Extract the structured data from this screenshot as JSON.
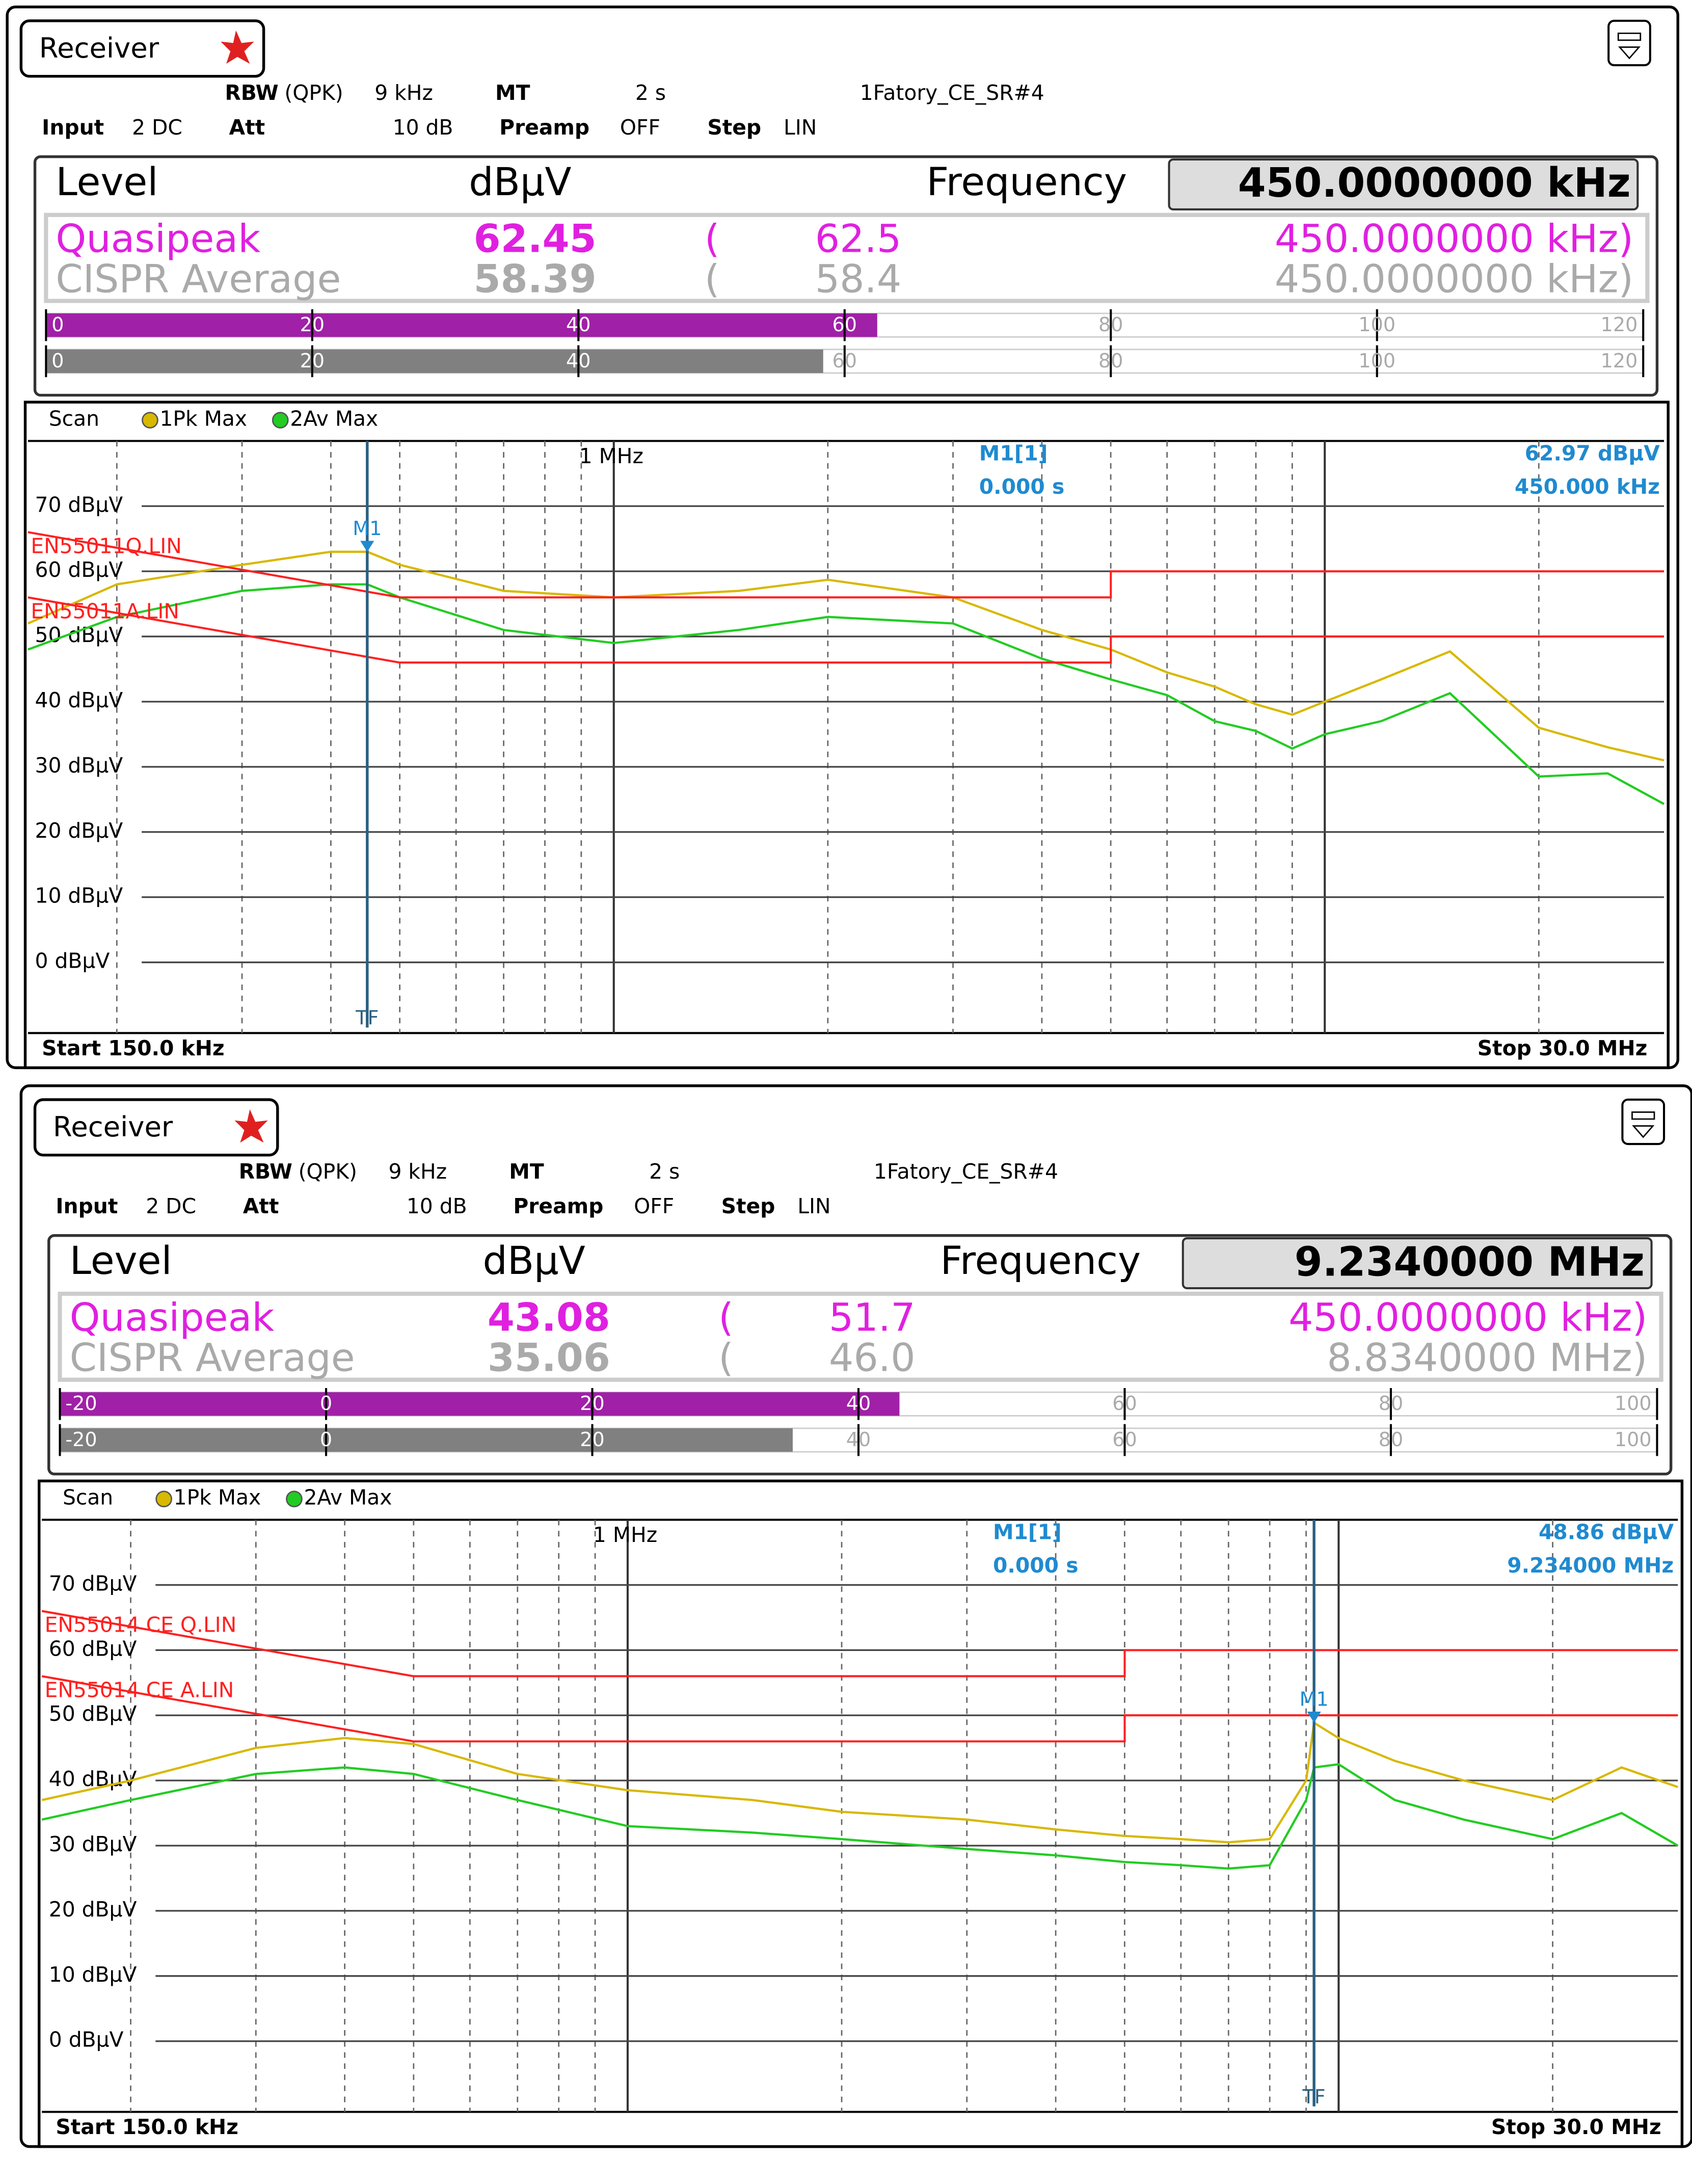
{
  "panels": [
    {
      "tab": "Receiver",
      "settings": {
        "rbw_label": "RBW",
        "rbw_mode": "(QPK)",
        "rbw": "9 kHz",
        "mt_label": "MT",
        "mt": "2 s",
        "name": "1Fatory_CE_SR#4",
        "input_label": "Input",
        "input": "2 DC",
        "att_label": "Att",
        "att": "10 dB",
        "preamp_label": "Preamp",
        "preamp": "OFF",
        "step_label": "Step",
        "step": "LIN"
      },
      "level_label": "Level",
      "unit": "dBµV",
      "frequency_label": "Frequency",
      "frequency": "450.0000000 kHz",
      "detectors": [
        {
          "name": "Quasipeak",
          "value": 62.45,
          "open": "(",
          "max": "62.5",
          "max_freq": "450.0000000 kHz)",
          "color": "#e020e0",
          "bar_color": "#a020a8"
        },
        {
          "name": "CISPR Average",
          "value": 58.39,
          "open": "(",
          "max": "58.4",
          "max_freq": "450.0000000 kHz)",
          "color": "#aaaaaa",
          "bar_color": "#808080"
        }
      ],
      "level_scale": {
        "lim": [
          0,
          120
        ],
        "ticks": [
          0,
          20,
          40,
          60,
          80,
          100,
          120
        ]
      },
      "chart": {
        "type": "line",
        "scan_label": "Scan",
        "log_x": true,
        "start_label": "Start 150.0 kHz",
        "stop_label": "Stop 30.0 MHz",
        "xlim": [
          0.15,
          30
        ],
        "ylim": [
          -10,
          80
        ],
        "xticks": [
          {
            "value": 1,
            "label": "1 MHz"
          }
        ],
        "xgrid": [
          0.2,
          0.3,
          0.4,
          0.5,
          0.6,
          0.7,
          0.8,
          0.9,
          1,
          2,
          3,
          4,
          5,
          6,
          7,
          8,
          9,
          10,
          20
        ],
        "yticks": [
          {
            "value": 0,
            "label": "0 dBµV"
          },
          {
            "value": 10,
            "label": "10 dBµV"
          },
          {
            "value": 20,
            "label": "20 dBµV"
          },
          {
            "value": 30,
            "label": "30 dBµV"
          },
          {
            "value": 40,
            "label": "40 dBµV"
          },
          {
            "value": 50,
            "label": "50 dBµV"
          },
          {
            "value": 60,
            "label": "60 dBµV"
          },
          {
            "value": 70,
            "label": "70 dBµV"
          }
        ],
        "x": [
          0.15,
          0.2,
          0.3,
          0.4,
          0.45,
          0.5,
          0.7,
          1,
          1.5,
          2,
          3,
          4,
          5,
          6,
          7,
          8,
          9,
          10,
          12,
          15,
          20,
          25,
          30
        ],
        "series": [
          {
            "name": "1Pk Max",
            "color": "#d8b800",
            "values": [
              52,
              58,
              61,
              63,
              63,
              61,
              57,
              56,
              57,
              58.7,
              56,
              51,
              48,
              44.5,
              42.3,
              39.6,
              38,
              40,
              43.4,
              47.7,
              36,
              33,
              31
            ]
          },
          {
            "name": "2Av Max",
            "color": "#22cc22",
            "values": [
              48,
              53,
              57,
              58,
              58,
              56,
              51,
              49,
              51,
              53,
              52,
              46.6,
              43.4,
              41,
              37,
              35.5,
              32.8,
              35,
              37,
              41.3,
              28.5,
              29,
              24.3
            ]
          }
        ],
        "limit_lines": [
          {
            "name": "EN55011Q.LIN",
            "color": "#ff2020",
            "x": [
              0.15,
              0.5,
              5,
              5,
              30
            ],
            "values": [
              66,
              56,
              56,
              60,
              60
            ]
          },
          {
            "name": "EN55011A.LIN",
            "color": "#ff2020",
            "x": [
              0.15,
              0.5,
              5,
              5,
              30
            ],
            "values": [
              56,
              46,
              46,
              50,
              50
            ]
          }
        ],
        "marker": {
          "name": "M1",
          "readout": "M1[1]",
          "time": "0.000 s",
          "x": 0.45,
          "x_label": "450.000 kHz",
          "value": 62.97,
          "value_label": "62.97 dBµV",
          "tf": "TF"
        }
      }
    },
    {
      "tab": "Receiver",
      "settings": {
        "rbw_label": "RBW",
        "rbw_mode": "(QPK)",
        "rbw": "9 kHz",
        "mt_label": "MT",
        "mt": "2 s",
        "name": "1Fatory_CE_SR#4",
        "input_label": "Input",
        "input": "2 DC",
        "att_label": "Att",
        "att": "10 dB",
        "preamp_label": "Preamp",
        "preamp": "OFF",
        "step_label": "Step",
        "step": "LIN"
      },
      "level_label": "Level",
      "unit": "dBµV",
      "frequency_label": "Frequency",
      "frequency": "9.2340000 MHz",
      "detectors": [
        {
          "name": "Quasipeak",
          "value": 43.08,
          "open": "(",
          "max": "51.7",
          "max_freq": "450.0000000 kHz)",
          "color": "#e020e0",
          "bar_color": "#a020a8"
        },
        {
          "name": "CISPR Average",
          "value": 35.06,
          "open": "(",
          "max": "46.0",
          "max_freq": "8.8340000 MHz)",
          "color": "#aaaaaa",
          "bar_color": "#808080"
        }
      ],
      "level_scale": {
        "lim": [
          -20,
          100
        ],
        "ticks": [
          -20,
          0,
          20,
          40,
          60,
          80,
          100
        ]
      },
      "chart": {
        "type": "line",
        "scan_label": "Scan",
        "log_x": true,
        "start_label": "Start 150.0 kHz",
        "stop_label": "Stop 30.0 MHz",
        "xlim": [
          0.15,
          30
        ],
        "ylim": [
          -10,
          80
        ],
        "xticks": [
          {
            "value": 1,
            "label": "1 MHz"
          }
        ],
        "xgrid": [
          0.2,
          0.3,
          0.4,
          0.5,
          0.6,
          0.7,
          0.8,
          0.9,
          1,
          2,
          3,
          4,
          5,
          6,
          7,
          8,
          9,
          10,
          20
        ],
        "yticks": [
          {
            "value": 0,
            "label": "0 dBµV"
          },
          {
            "value": 10,
            "label": "10 dBµV"
          },
          {
            "value": 20,
            "label": "20 dBµV"
          },
          {
            "value": 30,
            "label": "30 dBµV"
          },
          {
            "value": 40,
            "label": "40 dBµV"
          },
          {
            "value": 50,
            "label": "50 dBµV"
          },
          {
            "value": 60,
            "label": "60 dBµV"
          },
          {
            "value": 70,
            "label": "70 dBµV"
          }
        ],
        "x": [
          0.15,
          0.2,
          0.3,
          0.4,
          0.5,
          0.7,
          1,
          1.5,
          2,
          3,
          4,
          5,
          6,
          7,
          8,
          9,
          9.234,
          10,
          12,
          15,
          20,
          25,
          30
        ],
        "series": [
          {
            "name": "1Pk Max",
            "color": "#d8b800",
            "values": [
              37,
              40,
              45,
              46.5,
              45.6,
              41,
              38.5,
              37,
              35.2,
              34,
              32.5,
              31.5,
              31,
              30.5,
              31,
              40,
              48.86,
              46.5,
              43,
              40,
              37,
              42,
              39
            ]
          },
          {
            "name": "2Av Max",
            "color": "#22cc22",
            "values": [
              34,
              37,
              41,
              42,
              41,
              37,
              33,
              32,
              31,
              29.5,
              28.5,
              27.5,
              27,
              26.5,
              27,
              37,
              42,
              42.5,
              37,
              34,
              31,
              35,
              30
            ]
          }
        ],
        "limit_lines": [
          {
            "name": "EN55014 CE Q.LIN",
            "color": "#ff2020",
            "x": [
              0.15,
              0.5,
              5,
              5,
              30
            ],
            "values": [
              66,
              56,
              56,
              60,
              60
            ]
          },
          {
            "name": "EN55014 CE A.LIN",
            "color": "#ff2020",
            "x": [
              0.15,
              0.5,
              5,
              5,
              30
            ],
            "values": [
              56,
              46,
              46,
              50,
              50
            ]
          }
        ],
        "marker": {
          "name": "M1",
          "readout": "M1[1]",
          "time": "0.000 s",
          "x": 9.234,
          "x_label": "9.234000 MHz",
          "value": 48.86,
          "value_label": "48.86 dBµV",
          "tf": "TF"
        }
      }
    }
  ]
}
